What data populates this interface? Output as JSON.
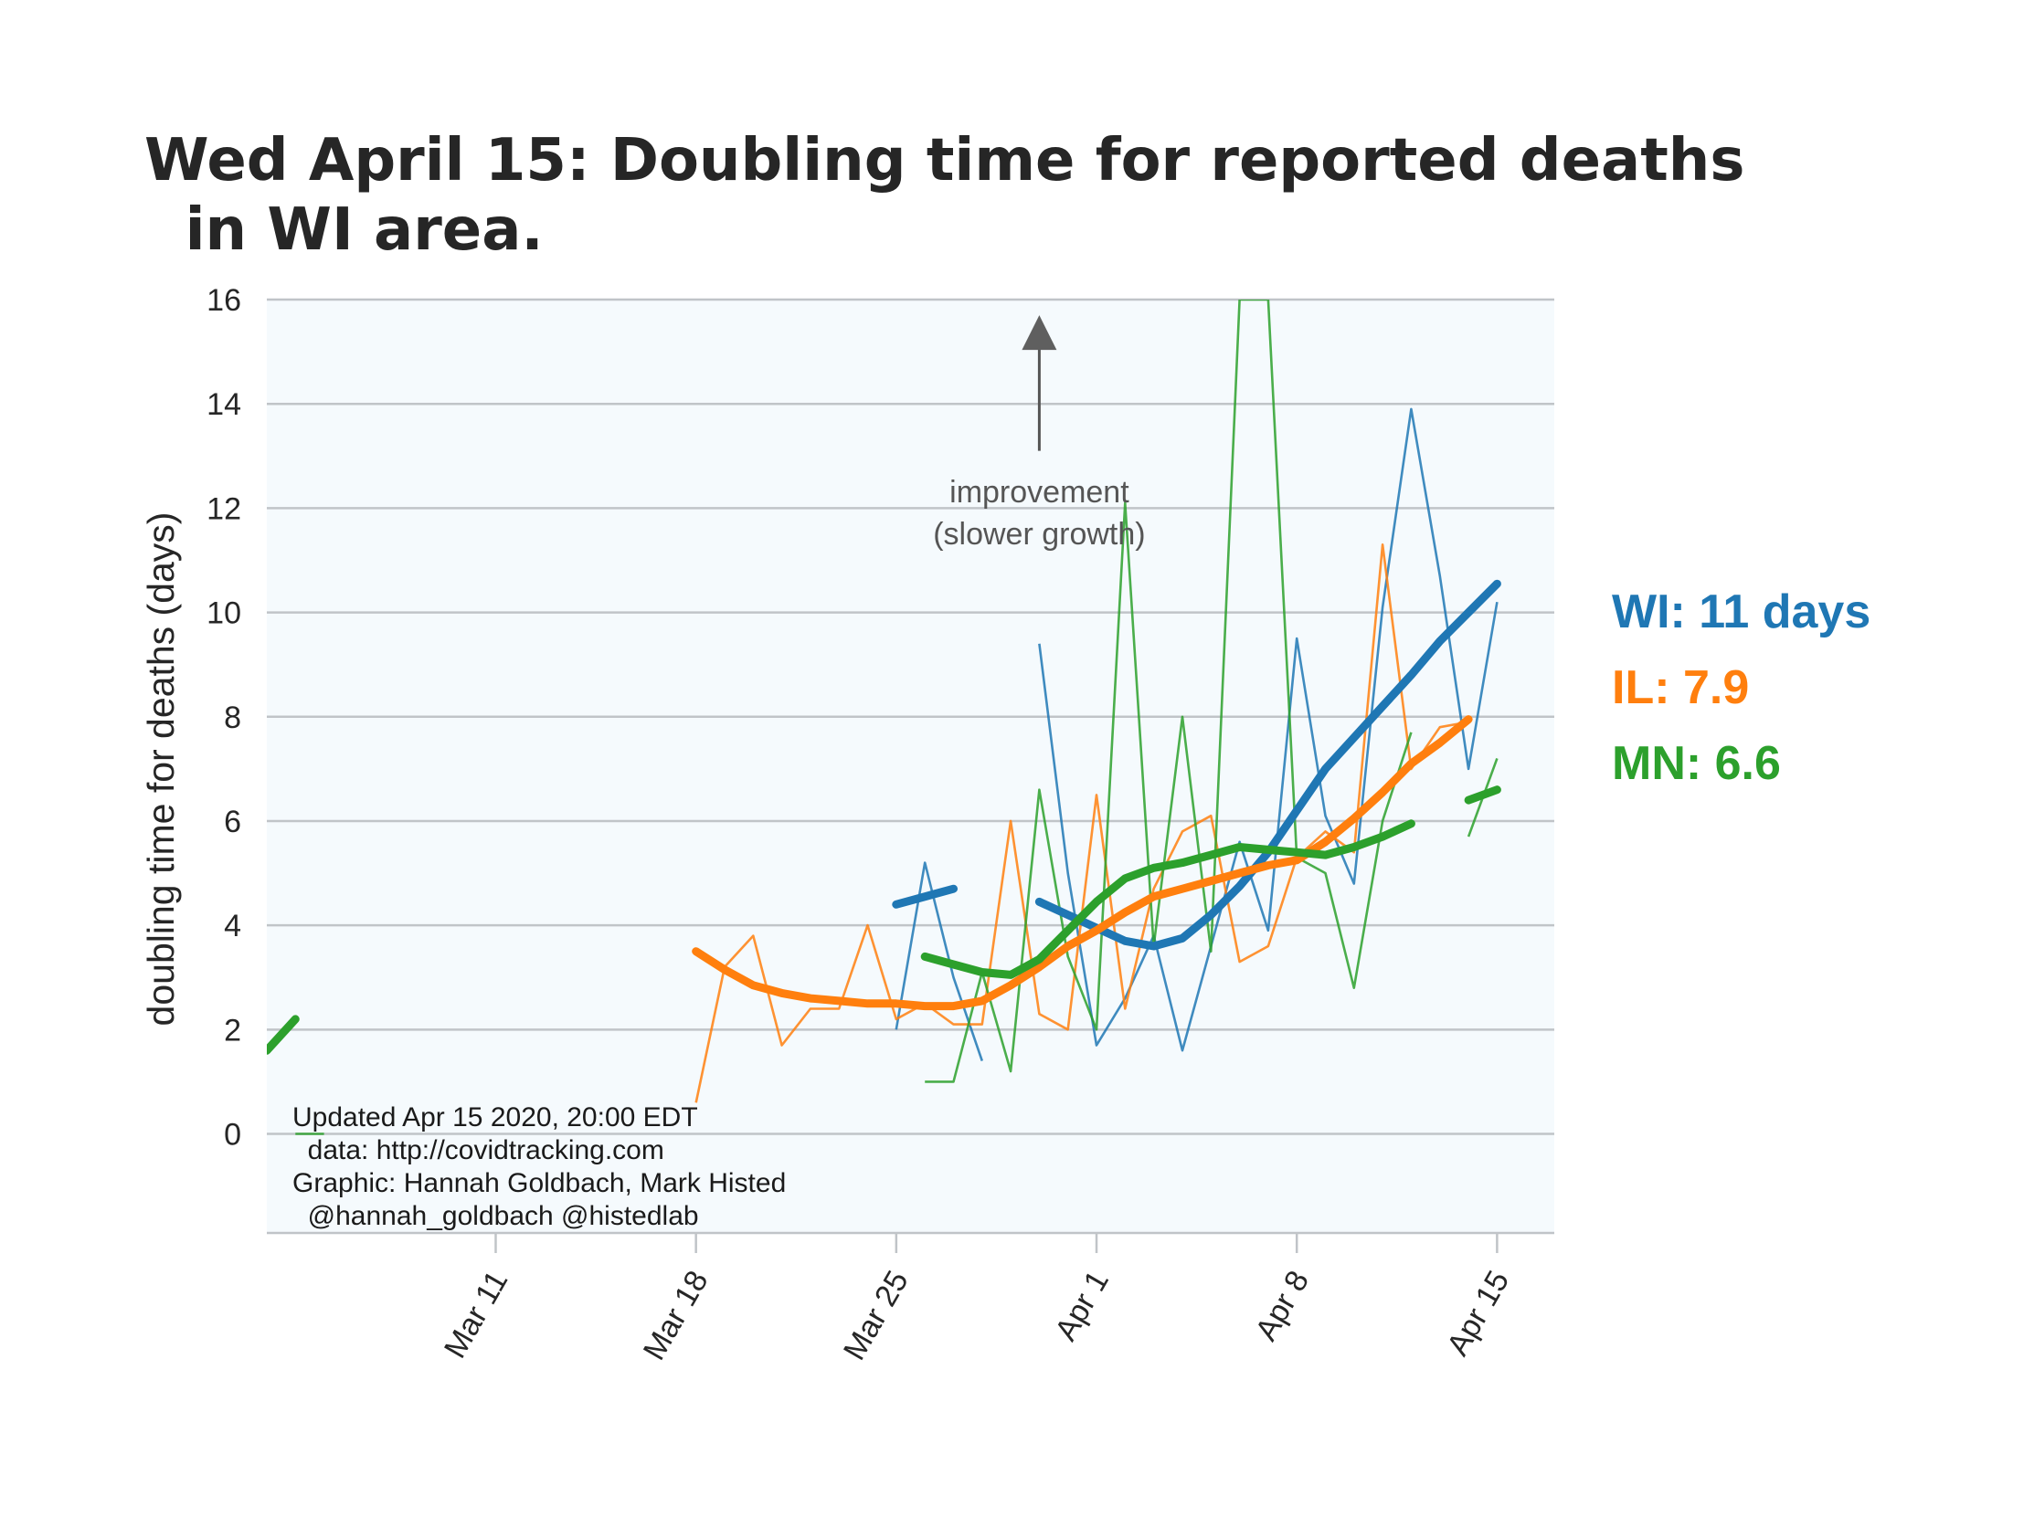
{
  "chart_data": {
    "type": "line",
    "title": "Wed April 15: Doubling time for reported deaths\n  in WI area.",
    "ylabel": "doubling time for deaths (days)",
    "xlabel": "",
    "ylim": [
      -1.9,
      16
    ],
    "yticks": [
      0,
      2,
      4,
      6,
      8,
      10,
      12,
      14,
      16
    ],
    "xlim": [
      "2020-03-03",
      "2020-04-17"
    ],
    "xticks": [
      {
        "date": "2020-03-11",
        "label": "Mar 11"
      },
      {
        "date": "2020-03-18",
        "label": "Mar 18"
      },
      {
        "date": "2020-03-25",
        "label": "Mar 25"
      },
      {
        "date": "2020-04-01",
        "label": "Apr 1"
      },
      {
        "date": "2020-04-08",
        "label": "Apr 8"
      },
      {
        "date": "2020-04-15",
        "label": "Apr 15"
      }
    ],
    "grid": "horizontal",
    "background": "#f5fafd",
    "annotation": {
      "text_lines": [
        "improvement",
        "(slower growth)"
      ],
      "date": "2020-03-30",
      "text_y": 12.6,
      "arrow_from_y": 13.1,
      "arrow_to_y": 15.7
    },
    "credits": [
      "Updated Apr 15 2020, 20:00 EDT",
      "  data: http://covidtracking.com",
      "Graphic: Hannah Goldbach, Mark Histed",
      "  @hannah_goldbach @histedlab"
    ],
    "legend": [
      {
        "text": "WI: 11 days",
        "color": "#1f77b4"
      },
      {
        "text": "IL: 7.9",
        "color": "#ff7f0e"
      },
      {
        "text": "MN: 6.6",
        "color": "#2ca02c"
      }
    ],
    "series": [
      {
        "name": "WI",
        "color": "#1f77b4",
        "raw": [
          [
            [
              "2020-03-25",
              2.0
            ],
            [
              "2020-03-26",
              5.2
            ],
            [
              "2020-03-27",
              3.0
            ],
            [
              "2020-03-28",
              1.4
            ]
          ],
          [
            [
              "2020-03-30",
              9.4
            ],
            [
              "2020-03-31",
              5.0
            ],
            [
              "2020-04-01",
              1.7
            ],
            [
              "2020-04-02",
              2.6
            ],
            [
              "2020-04-03",
              3.8
            ],
            [
              "2020-04-04",
              1.6
            ],
            [
              "2020-04-05",
              3.6
            ],
            [
              "2020-04-06",
              5.6
            ],
            [
              "2020-04-07",
              3.9
            ],
            [
              "2020-04-08",
              9.5
            ],
            [
              "2020-04-09",
              6.1
            ],
            [
              "2020-04-10",
              4.8
            ],
            [
              "2020-04-11",
              10.1
            ],
            [
              "2020-04-12",
              13.9
            ],
            [
              "2020-04-13",
              10.7
            ],
            [
              "2020-04-14",
              7.0
            ],
            [
              "2020-04-15",
              10.2
            ]
          ]
        ],
        "smooth": [
          [
            [
              "2020-03-25",
              4.4
            ],
            [
              "2020-03-27",
              4.7
            ]
          ],
          [
            [
              "2020-03-30",
              4.45
            ],
            [
              "2020-03-31",
              4.2
            ],
            [
              "2020-04-01",
              3.95
            ],
            [
              "2020-04-02",
              3.7
            ],
            [
              "2020-04-03",
              3.6
            ],
            [
              "2020-04-04",
              3.75
            ],
            [
              "2020-04-05",
              4.2
            ],
            [
              "2020-04-06",
              4.75
            ],
            [
              "2020-04-07",
              5.4
            ],
            [
              "2020-04-08",
              6.2
            ],
            [
              "2020-04-09",
              7.0
            ],
            [
              "2020-04-10",
              7.6
            ],
            [
              "2020-04-11",
              8.2
            ],
            [
              "2020-04-12",
              8.8
            ],
            [
              "2020-04-13",
              9.45
            ],
            [
              "2020-04-14",
              10.0
            ],
            [
              "2020-04-15",
              10.55
            ]
          ]
        ]
      },
      {
        "name": "IL",
        "color": "#ff7f0e",
        "raw": [
          [
            [
              "2020-03-18",
              0.6
            ],
            [
              "2020-03-19",
              3.2
            ],
            [
              "2020-03-20",
              3.8
            ],
            [
              "2020-03-21",
              1.7
            ],
            [
              "2020-03-22",
              2.4
            ],
            [
              "2020-03-23",
              2.4
            ],
            [
              "2020-03-24",
              4.0
            ],
            [
              "2020-03-25",
              2.2
            ],
            [
              "2020-03-26",
              2.5
            ],
            [
              "2020-03-27",
              2.1
            ],
            [
              "2020-03-28",
              2.1
            ],
            [
              "2020-03-29",
              6.0
            ],
            [
              "2020-03-30",
              2.3
            ],
            [
              "2020-03-31",
              2.0
            ],
            [
              "2020-04-01",
              6.5
            ],
            [
              "2020-04-02",
              2.4
            ],
            [
              "2020-04-03",
              4.7
            ],
            [
              "2020-04-04",
              5.8
            ],
            [
              "2020-04-05",
              6.1
            ],
            [
              "2020-04-06",
              3.3
            ],
            [
              "2020-04-07",
              3.6
            ],
            [
              "2020-04-08",
              5.3
            ],
            [
              "2020-04-09",
              5.8
            ],
            [
              "2020-04-10",
              5.4
            ],
            [
              "2020-04-11",
              11.3
            ],
            [
              "2020-04-12",
              7.0
            ],
            [
              "2020-04-13",
              7.8
            ],
            [
              "2020-04-14",
              7.9
            ]
          ]
        ],
        "smooth": [
          [
            [
              "2020-03-18",
              3.5
            ],
            [
              "2020-03-19",
              3.15
            ],
            [
              "2020-03-20",
              2.85
            ],
            [
              "2020-03-21",
              2.7
            ],
            [
              "2020-03-22",
              2.6
            ],
            [
              "2020-03-23",
              2.55
            ],
            [
              "2020-03-24",
              2.5
            ],
            [
              "2020-03-25",
              2.5
            ],
            [
              "2020-03-26",
              2.45
            ],
            [
              "2020-03-27",
              2.45
            ],
            [
              "2020-03-28",
              2.55
            ],
            [
              "2020-03-29",
              2.85
            ],
            [
              "2020-03-30",
              3.2
            ],
            [
              "2020-03-31",
              3.6
            ],
            [
              "2020-04-01",
              3.9
            ],
            [
              "2020-04-02",
              4.25
            ],
            [
              "2020-04-03",
              4.55
            ],
            [
              "2020-04-04",
              4.7
            ],
            [
              "2020-04-05",
              4.85
            ],
            [
              "2020-04-06",
              5.0
            ],
            [
              "2020-04-07",
              5.15
            ],
            [
              "2020-04-08",
              5.25
            ],
            [
              "2020-04-09",
              5.6
            ],
            [
              "2020-04-10",
              6.05
            ],
            [
              "2020-04-11",
              6.55
            ],
            [
              "2020-04-12",
              7.1
            ],
            [
              "2020-04-13",
              7.5
            ],
            [
              "2020-04-14",
              7.95
            ]
          ]
        ]
      },
      {
        "name": "MN",
        "color": "#2ca02c",
        "raw": [
          [
            [
              "2020-03-04",
              0.0
            ],
            [
              "2020-03-05",
              0.0
            ]
          ],
          [
            [
              "2020-03-26",
              1.0
            ],
            [
              "2020-03-27",
              1.0
            ],
            [
              "2020-03-28",
              3.1
            ],
            [
              "2020-03-29",
              1.2
            ],
            [
              "2020-03-30",
              6.6
            ],
            [
              "2020-03-31",
              3.4
            ],
            [
              "2020-04-01",
              2.0
            ],
            [
              "2020-04-02",
              12.1
            ],
            [
              "2020-04-03",
              3.6
            ],
            [
              "2020-04-04",
              8.0
            ],
            [
              "2020-04-05",
              3.5
            ],
            [
              "2020-04-06",
              16.0
            ],
            [
              "2020-04-07",
              16.0
            ],
            [
              "2020-04-08",
              5.3
            ],
            [
              "2020-04-09",
              5.0
            ],
            [
              "2020-04-10",
              2.8
            ],
            [
              "2020-04-11",
              6.0
            ],
            [
              "2020-04-12",
              7.7
            ]
          ],
          [
            [
              "2020-04-14",
              5.7
            ],
            [
              "2020-04-15",
              7.2
            ]
          ]
        ],
        "smooth": [
          [
            [
              "2020-03-03",
              1.6
            ],
            [
              "2020-03-04",
              2.2
            ]
          ],
          [
            [
              "2020-03-26",
              3.4
            ],
            [
              "2020-03-27",
              3.25
            ],
            [
              "2020-03-28",
              3.1
            ],
            [
              "2020-03-29",
              3.05
            ],
            [
              "2020-03-30",
              3.35
            ],
            [
              "2020-03-31",
              3.9
            ],
            [
              "2020-04-01",
              4.45
            ],
            [
              "2020-04-02",
              4.9
            ],
            [
              "2020-04-03",
              5.1
            ],
            [
              "2020-04-04",
              5.2
            ],
            [
              "2020-04-05",
              5.35
            ],
            [
              "2020-04-06",
              5.5
            ],
            [
              "2020-04-07",
              5.45
            ],
            [
              "2020-04-08",
              5.4
            ],
            [
              "2020-04-09",
              5.35
            ],
            [
              "2020-04-10",
              5.5
            ],
            [
              "2020-04-11",
              5.7
            ],
            [
              "2020-04-12",
              5.95
            ]
          ],
          [
            [
              "2020-04-14",
              6.4
            ],
            [
              "2020-04-15",
              6.6
            ]
          ]
        ]
      }
    ]
  }
}
